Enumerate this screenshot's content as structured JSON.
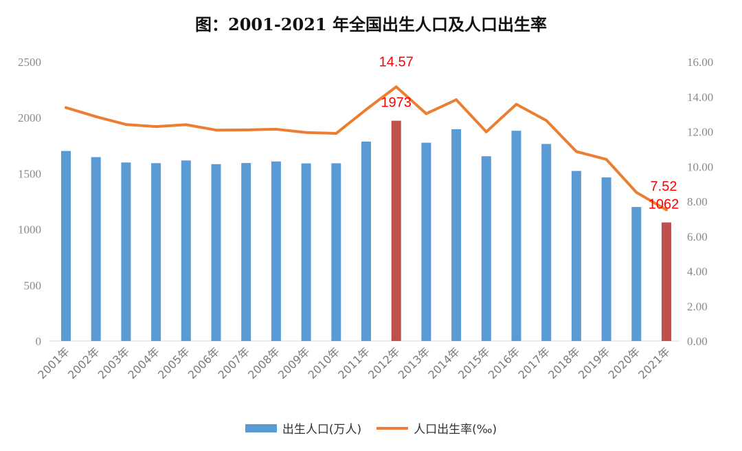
{
  "chart_data": {
    "type": "bar",
    "title": "图：2001-2021 年全国出生人口及人口出生率",
    "categories": [
      "2001年",
      "2002年",
      "2003年",
      "2004年",
      "2005年",
      "2006年",
      "2007年",
      "2008年",
      "2009年",
      "2010年",
      "2011年",
      "2012年",
      "2013年",
      "2014年",
      "2015年",
      "2016年",
      "2017年",
      "2018年",
      "2019年",
      "2020年",
      "2021年"
    ],
    "series": [
      {
        "name": "出生人口(万人)",
        "type": "bar",
        "axis": "left",
        "color": "#5B9BD5",
        "highlight_color": "#C0504D",
        "highlight_indices": [
          11,
          20
        ],
        "values": [
          1702,
          1647,
          1599,
          1593,
          1617,
          1584,
          1594,
          1608,
          1591,
          1592,
          1786,
          1973,
          1776,
          1897,
          1655,
          1883,
          1765,
          1523,
          1465,
          1200,
          1062
        ]
      },
      {
        "name": "人口出生率(‰)",
        "type": "line",
        "axis": "right",
        "color": "#ED7D31",
        "values": [
          13.38,
          12.86,
          12.41,
          12.29,
          12.4,
          12.09,
          12.1,
          12.14,
          11.95,
          11.9,
          13.27,
          14.57,
          13.03,
          13.83,
          11.99,
          13.57,
          12.64,
          10.86,
          10.41,
          8.52,
          7.52
        ]
      }
    ],
    "data_labels": [
      {
        "series": 1,
        "index": 11,
        "text": "14.57"
      },
      {
        "series": 0,
        "index": 11,
        "text": "1973"
      },
      {
        "series": 1,
        "index": 20,
        "text": "7.52"
      },
      {
        "series": 0,
        "index": 20,
        "text": "1062"
      }
    ],
    "y_left": {
      "range": [
        0,
        2500
      ],
      "ticks": [
        "0",
        "500",
        "1000",
        "1500",
        "2000",
        "2500"
      ]
    },
    "y_right": {
      "range": [
        0,
        16
      ],
      "ticks": [
        "0.00",
        "2.00",
        "4.00",
        "6.00",
        "8.00",
        "10.00",
        "12.00",
        "14.00",
        "16.00"
      ]
    },
    "grid": false,
    "legend": "bottom"
  }
}
